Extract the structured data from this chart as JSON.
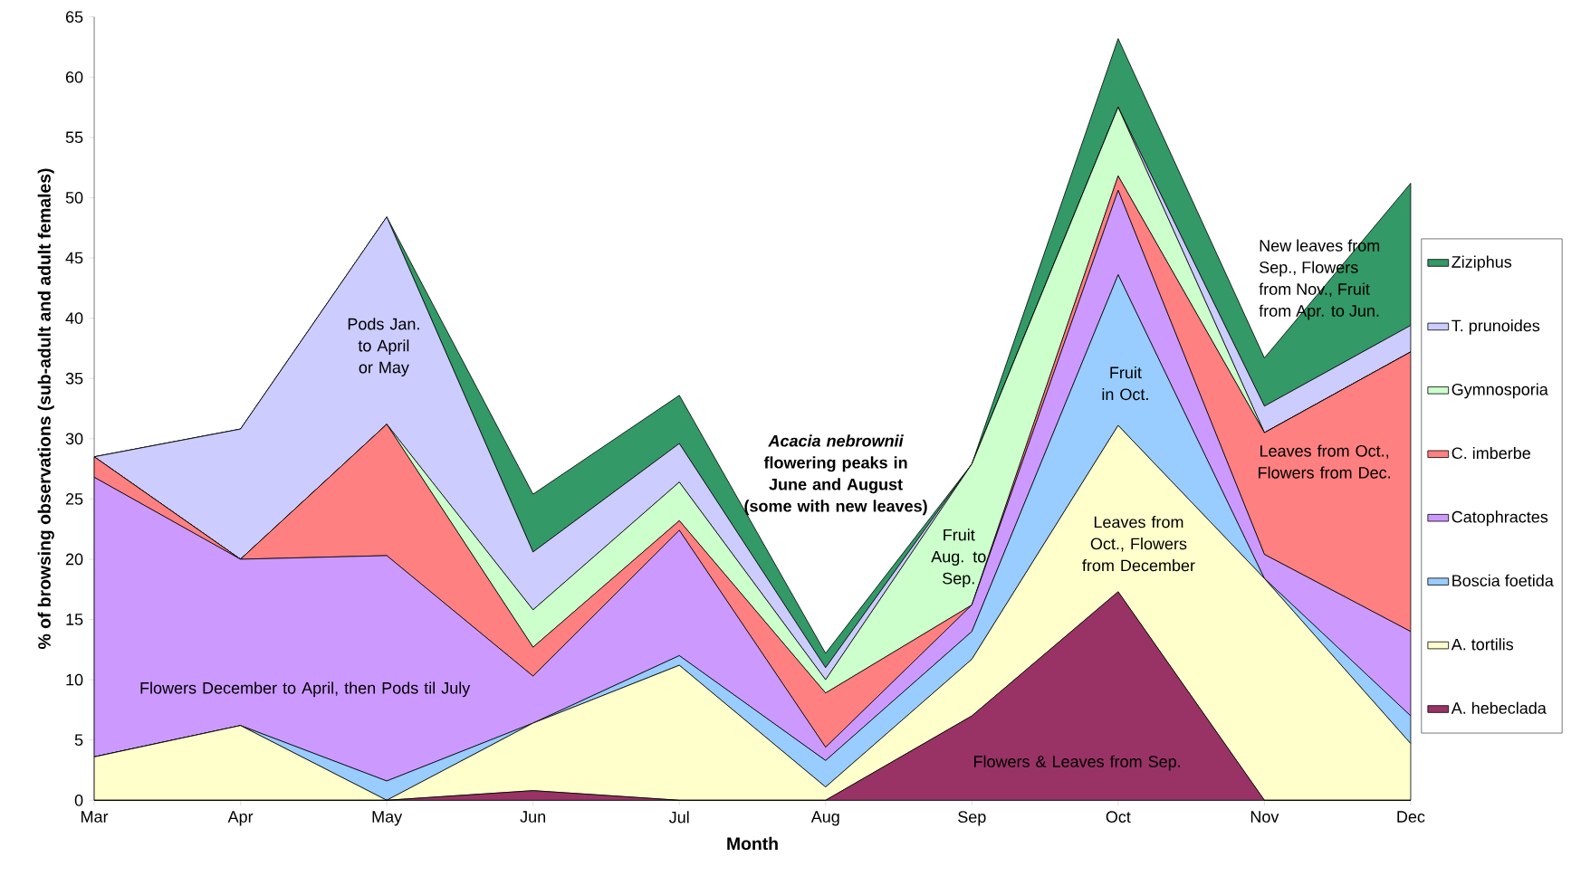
{
  "chart_data": {
    "type": "area",
    "stacked": true,
    "xlabel": "Month",
    "ylabel": "% of browsing observations (sub-adult and adult females)",
    "categories": [
      "Mar",
      "Apr",
      "May",
      "Jun",
      "Jul",
      "Aug",
      "Sep",
      "Oct",
      "Nov",
      "Dec"
    ],
    "ylim": [
      0,
      65
    ],
    "yticks": [
      0,
      5,
      10,
      15,
      20,
      25,
      30,
      35,
      40,
      45,
      50,
      55,
      60,
      65
    ],
    "grid": false,
    "legend": "right",
    "series": [
      {
        "name": "A. hebeclada",
        "color": "#993366",
        "values": [
          0,
          0,
          0,
          0.8,
          0,
          0,
          7,
          17.3,
          0,
          0
        ]
      },
      {
        "name": "A. tortilis",
        "color": "#ffffcc",
        "values": [
          3.6,
          6.2,
          0,
          5.6,
          11.2,
          1.1,
          4.7,
          13.8,
          18.4,
          4.7
        ]
      },
      {
        "name": "Boscia foetida",
        "color": "#99ccff",
        "values": [
          0,
          0,
          1.6,
          0,
          0.8,
          2.2,
          2.3,
          12.5,
          0,
          2.3
        ]
      },
      {
        "name": "Catophractes",
        "color": "#cc99ff",
        "values": [
          23.2,
          13.8,
          18.7,
          3.9,
          10.4,
          1.1,
          2.2,
          7.0,
          2.0,
          7.0
        ]
      },
      {
        "name": "C. imberbe",
        "color": "#ff8080",
        "values": [
          1.7,
          0,
          10.9,
          2.4,
          0.8,
          4.5,
          0,
          1.2,
          10.1,
          23.2
        ]
      },
      {
        "name": "Gymnosporia",
        "color": "#ccffcc",
        "values": [
          0,
          0,
          0,
          3.1,
          3.2,
          1.1,
          11.7,
          5.7,
          0,
          0
        ]
      },
      {
        "name": "T. prunoides",
        "color": "#ccccff",
        "values": [
          0,
          10.8,
          17.2,
          4.8,
          3.2,
          1.0,
          0,
          0,
          2.2,
          2.2
        ]
      },
      {
        "name": "Ziziphus",
        "color": "#339966",
        "values": [
          0,
          0,
          0,
          4.8,
          4.0,
          1.2,
          0,
          5.7,
          4.0,
          11.8
        ]
      }
    ],
    "annotations": [
      "Pods Jan. to April or May",
      "Flowers December to April, then Pods til July",
      "*Acacia nebrownii* flowering peaks in June and August (some with new leaves)",
      "Fruit Aug. to Sep.",
      "Fruit in Oct.",
      "Leaves from Oct., Flowers from December",
      "Flowers & Leaves from Sep.",
      "New leaves from Sep., Flowers from Nov., Fruit from Apr. to Jun.",
      "Leaves from Oct., Flowers from Dec."
    ]
  }
}
